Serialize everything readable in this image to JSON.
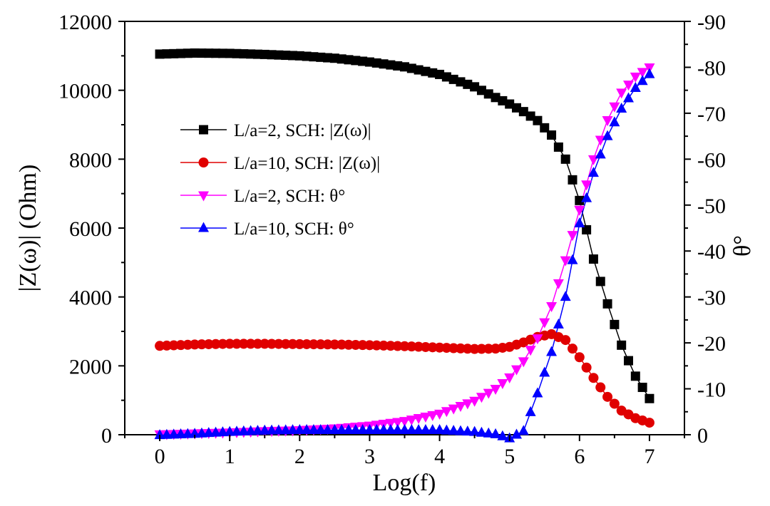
{
  "chart_data": {
    "type": "scatter",
    "xlabel": "Log(f)",
    "ylabel_left": "|Z(ω)| (Ohm)",
    "ylabel_right": "θ°",
    "xlim": [
      -0.5,
      7.5
    ],
    "ylim_left": [
      0,
      12000
    ],
    "ylim_right": [
      0,
      -90
    ],
    "x_ticks": [
      "0",
      "1",
      "2",
      "3",
      "4",
      "5",
      "6",
      "7"
    ],
    "y_left_ticks": [
      "0",
      "2000",
      "4000",
      "6000",
      "8000",
      "10000",
      "12000"
    ],
    "y_right_ticks": [
      "0",
      "-10",
      "-20",
      "-30",
      "-40",
      "-50",
      "-60",
      "-70",
      "-80",
      "-90"
    ],
    "legend": [
      "L/a=2, SCH: |Z(ω)|",
      "L/a=10, SCH: |Z(ω)|",
      "L/a=2, SCH: θ°",
      "L/a=10, SCH: θ°"
    ],
    "series": [
      {
        "name": "L/a=2, SCH: |Z(ω)|",
        "axis": "left",
        "marker": "square",
        "color": "#000000",
        "x": [
          0,
          0.5,
          1,
          1.5,
          2,
          2.5,
          3,
          3.5,
          4,
          4.5,
          4.8,
          5,
          5.2,
          5.4,
          5.6,
          5.8,
          6,
          6.2,
          6.4,
          6.6,
          6.8,
          7
        ],
        "y": [
          11050,
          11080,
          11070,
          11040,
          11000,
          10930,
          10820,
          10680,
          10460,
          10100,
          9790,
          9600,
          9380,
          9120,
          8700,
          8000,
          6800,
          5100,
          3800,
          2600,
          1700,
          1050
        ]
      },
      {
        "name": "L/a=10, SCH: |Z(ω)|",
        "axis": "left",
        "marker": "circle",
        "color": "#e00000",
        "x": [
          0,
          0.5,
          1,
          1.5,
          2,
          2.5,
          3,
          3.5,
          4,
          4.5,
          4.8,
          5,
          5.2,
          5.4,
          5.6,
          5.8,
          6,
          6.2,
          6.4,
          6.6,
          6.8,
          7
        ],
        "y": [
          2580,
          2620,
          2640,
          2640,
          2630,
          2620,
          2600,
          2570,
          2530,
          2490,
          2500,
          2550,
          2680,
          2840,
          2920,
          2750,
          2250,
          1650,
          1100,
          700,
          480,
          350
        ]
      },
      {
        "name": "L/a=2, SCH: θ°",
        "axis": "right",
        "marker": "triangle-down",
        "color": "#ff00ff",
        "x": [
          0,
          0.5,
          1,
          1.5,
          2,
          2.5,
          3,
          3.5,
          4,
          4.5,
          4.8,
          5,
          5.2,
          5.4,
          5.6,
          5.8,
          6,
          6.2,
          6.4,
          6.6,
          6.8,
          7
        ],
        "y": [
          -0.1,
          -0.3,
          -0.5,
          -0.8,
          -1.0,
          -1.4,
          -2.0,
          -3.0,
          -4.6,
          -7.4,
          -10.0,
          -12.5,
          -16.0,
          -21.0,
          -28.0,
          -38.0,
          -49.0,
          -60.0,
          -68.5,
          -74.5,
          -78.0,
          -80.0
        ]
      },
      {
        "name": "L/a=10, SCH: θ°",
        "axis": "right",
        "marker": "triangle-up",
        "color": "#0000ff",
        "x": [
          0,
          0.5,
          1,
          1.5,
          2,
          2.5,
          3,
          3.5,
          4,
          4.5,
          4.8,
          5,
          5.2,
          5.4,
          5.6,
          5.8,
          6,
          6.2,
          6.4,
          6.6,
          6.8,
          7
        ],
        "y": [
          0.1,
          -0.2,
          -0.6,
          -0.9,
          -1.0,
          -1.0,
          -1.0,
          -1.0,
          -1.0,
          -0.6,
          -0.1,
          0.8,
          -0.8,
          -9.0,
          -18.0,
          -30.0,
          -46.0,
          -57.0,
          -65.0,
          -71.0,
          -75.5,
          -78.5
        ]
      }
    ]
  }
}
